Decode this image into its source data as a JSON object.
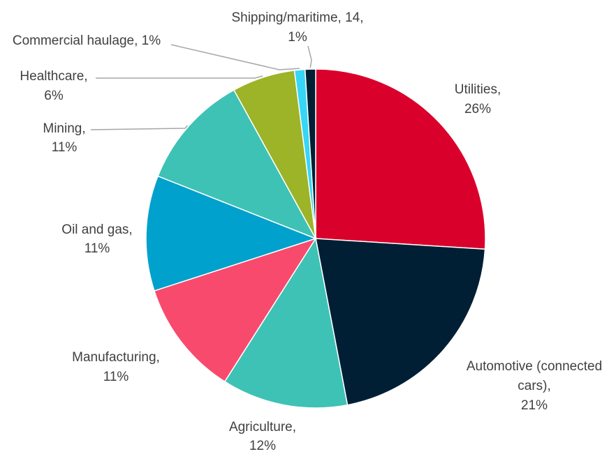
{
  "chart_data": {
    "type": "pie",
    "legend": "none",
    "start_angle": "12 o'clock, clockwise",
    "slices": [
      {
        "label": "Utilities,",
        "value_label": "26%",
        "value": 26,
        "color": "#D9002B"
      },
      {
        "label": "Automotive (connected",
        "label2": "cars),",
        "value_label": "21%",
        "value": 21,
        "color": "#001F35"
      },
      {
        "label": "Agriculture,",
        "value_label": "12%",
        "value": 12,
        "color": "#3EC2B5"
      },
      {
        "label": "Manufacturing,",
        "value_label": "11%",
        "value": 11,
        "color": "#F84A6D"
      },
      {
        "label": "Oil and gas,",
        "value_label": "11%",
        "value": 11,
        "color": "#00A1CC"
      },
      {
        "label": "Mining,",
        "value_label": "11%",
        "value": 11,
        "color": "#3EC2B5"
      },
      {
        "label": "Healthcare,",
        "value_label": "6%",
        "value": 6,
        "color": "#9DB328"
      },
      {
        "label": "Commercial haulage, 1%",
        "value": 1,
        "color": "#36D6F6"
      },
      {
        "label": "Shipping/maritime, 14,",
        "value_label": "1%",
        "value": 1,
        "color": "#001F35"
      }
    ]
  }
}
